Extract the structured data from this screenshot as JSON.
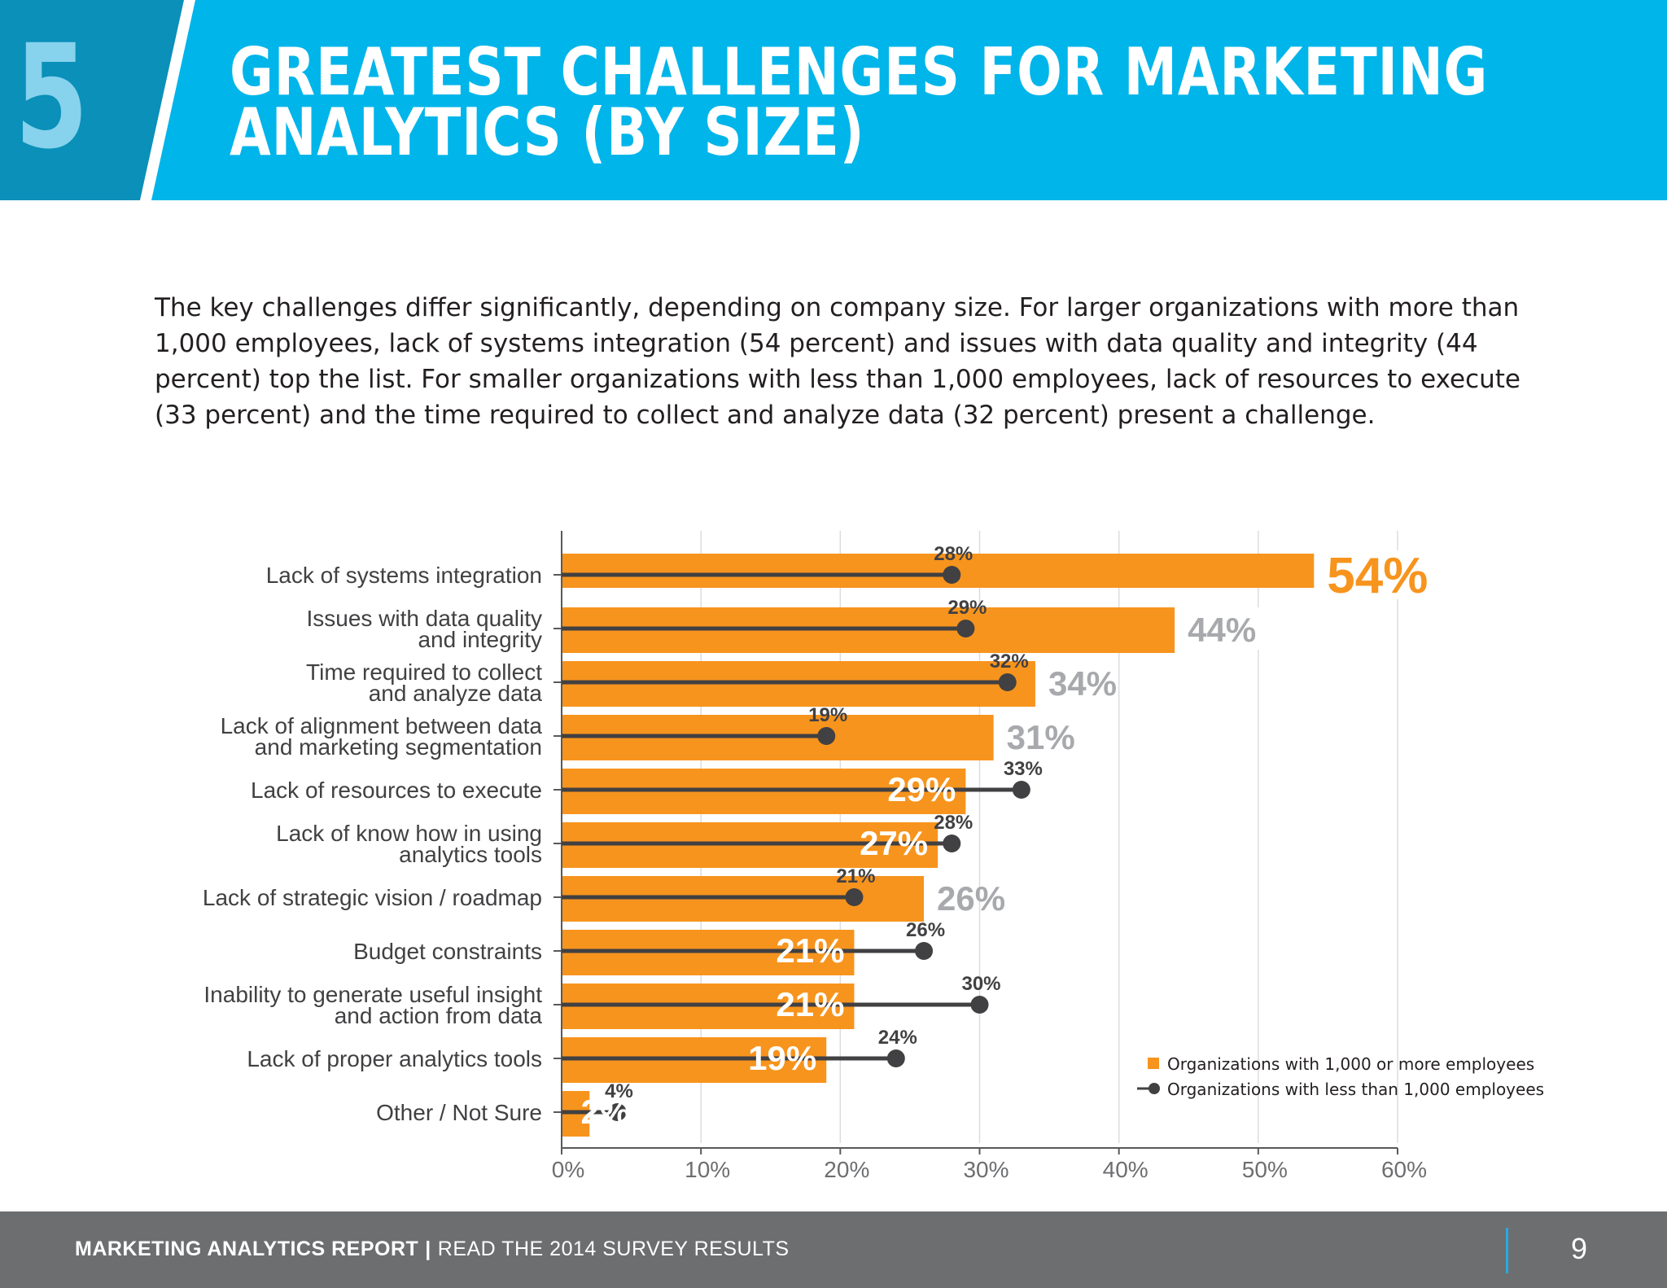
{
  "header": {
    "section_number": "5",
    "title_line1": "GREATEST CHALLENGES FOR MARKETING",
    "title_line2": "ANALYTICS (BY SIZE)"
  },
  "intro": "The key challenges differ significantly, depending on company size. For larger organizations with more than 1,000 employees, lack of systems integration (54 percent) and issues with data quality and integrity (44 percent) top the list. For smaller organizations with less than 1,000 employees, lack of resources to execute (33 percent) and the time required to collect and analyze data (32 percent) present a challenge.",
  "chart_data": {
    "type": "bar",
    "orientation": "horizontal",
    "categories": [
      [
        "Lack of systems integration"
      ],
      [
        "Issues with data quality",
        "and integrity"
      ],
      [
        "Time required to collect",
        "and analyze data"
      ],
      [
        "Lack of alignment between data",
        "and marketing segmentation"
      ],
      [
        "Lack of resources to execute"
      ],
      [
        "Lack of know how in using",
        "analytics tools"
      ],
      [
        "Lack of strategic vision / roadmap"
      ],
      [
        "Budget constraints"
      ],
      [
        "Inability to generate useful insight",
        "and action from data"
      ],
      [
        "Lack of proper analytics tools"
      ],
      [
        "Other / Not Sure"
      ]
    ],
    "series": [
      {
        "name": "Organizations with 1,000 or more employees",
        "mark": "bar",
        "color": "#f7941d",
        "values": [
          54,
          44,
          34,
          31,
          29,
          27,
          26,
          21,
          21,
          19,
          2
        ]
      },
      {
        "name": "Organizations with less than 1,000 employees",
        "mark": "lollipop",
        "color": "#414042",
        "values": [
          28,
          29,
          32,
          19,
          33,
          28,
          21,
          26,
          30,
          24,
          4
        ]
      }
    ],
    "value_suffix": "%",
    "xlim": [
      0,
      60
    ],
    "xticks": [
      0,
      10,
      20,
      30,
      40,
      50,
      60
    ],
    "xtick_labels": [
      "0%",
      "10%",
      "20%",
      "30%",
      "40%",
      "50%",
      "60%"
    ],
    "grid": true,
    "legend_position": "bottom-right",
    "label_colors": {
      "highlight": "#f7941d",
      "outside": "#a7a9ac",
      "inside": "#ffffff",
      "dot": "#414042"
    }
  },
  "footer": {
    "report_name": "MARKETING ANALYTICS REPORT",
    "separator": "|",
    "subtitle": "READ THE 2014 SURVEY RESULTS",
    "page_number": "9"
  }
}
